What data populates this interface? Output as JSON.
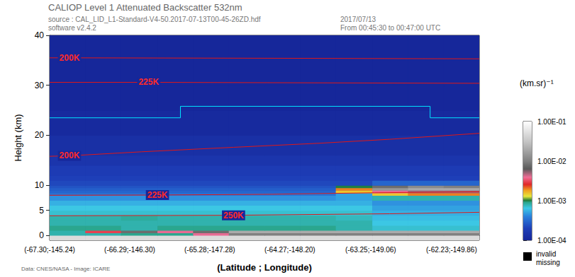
{
  "chart_data": {
    "type": "heatmap",
    "title": "CALIOP Level 1 Attenuated Backscatter 532nm",
    "subtitle": [
      "source : CAL_LID_L1-Standard-V4-50.2017-07-13T00-45-26ZD.hdf",
      "software v2.4.2"
    ],
    "annotations": [
      "2017/07/13",
      "From 00:45:30 to 00:47:00 UTC",
      "Data: CNES/NASA - Image: ICARE"
    ],
    "x_label": "(Latitude ; Longitude)",
    "y_label": "Height (km)",
    "xlim": [
      -67.3,
      -61.88
    ],
    "xticks": [
      {
        "value": -67.3,
        "label": "(-67.30;-145.24)"
      },
      {
        "value": -66.29,
        "label": "(-66.29;-146.30)"
      },
      {
        "value": -65.28,
        "label": "(-65.28;-147.28)"
      },
      {
        "value": -64.27,
        "label": "(-64.27;-148.20)"
      },
      {
        "value": -63.25,
        "label": "(-63.25;-149.06)"
      },
      {
        "value": -62.23,
        "label": "(-62.23;-149.86)"
      }
    ],
    "ylim": [
      -1,
      40
    ],
    "yticks": [
      0,
      5,
      10,
      20,
      30,
      40
    ],
    "grid": false,
    "x_edges": [
      -67.3,
      -66.85,
      -66.4,
      -65.94,
      -65.49,
      -65.04,
      -64.59,
      -64.14,
      -63.69,
      -63.23,
      -62.78,
      -62.33,
      -61.88
    ],
    "y_edges": [
      -1,
      0,
      0.5,
      1,
      2,
      3,
      4,
      5,
      6,
      7,
      8,
      8.5,
      9,
      9.5,
      10,
      11,
      12,
      14,
      16,
      20,
      25,
      30,
      35,
      40
    ],
    "cells": [
      [
        0.05,
        0.05,
        0.05,
        0.05,
        0.05,
        0.05,
        0.05,
        0.05,
        0.05,
        0.05,
        0.05,
        0.05
      ],
      [
        0.0008,
        0.0008,
        0.0009,
        0.0009,
        0.004,
        0.01,
        0.01,
        0.01,
        0.01,
        0.01,
        0.01,
        0.01
      ],
      [
        0.0008,
        0.003,
        0.008,
        0.004,
        0.008,
        0.02,
        0.02,
        0.02,
        0.02,
        0.02,
        0.02,
        0.02
      ],
      [
        0.0009,
        0.0009,
        0.0008,
        0.0009,
        0.0009,
        0.0009,
        0.0009,
        0.0009,
        0.0008,
        0.0007,
        0.0007,
        0.0007
      ],
      [
        0.0008,
        0.0008,
        0.0008,
        0.0008,
        0.0008,
        0.0008,
        0.0008,
        0.0008,
        0.0008,
        0.00065,
        0.00065,
        0.00065
      ],
      [
        0.0008,
        0.0008,
        0.00085,
        0.0008,
        0.0008,
        0.0008,
        0.0008,
        0.0008,
        0.00075,
        0.0006,
        0.0006,
        0.0006
      ],
      [
        0.0007,
        0.0007,
        0.0007,
        0.0007,
        0.0007,
        0.0007,
        0.0007,
        0.0007,
        0.0007,
        0.00055,
        0.00055,
        0.00055
      ],
      [
        0.00065,
        0.00065,
        0.00065,
        0.00065,
        0.00065,
        0.00065,
        0.00065,
        0.00065,
        0.00065,
        0.0005,
        0.0005,
        0.0005
      ],
      [
        0.00055,
        0.00055,
        0.00055,
        0.00055,
        0.00055,
        0.00055,
        0.00055,
        0.00055,
        0.00055,
        0.00045,
        0.00045,
        0.00045
      ],
      [
        0.00045,
        0.00045,
        0.00045,
        0.00045,
        0.00045,
        0.00045,
        0.00045,
        0.00045,
        0.0005,
        0.0008,
        0.0008,
        0.0008
      ],
      [
        0.00035,
        0.00035,
        0.00035,
        0.00035,
        0.00035,
        0.00035,
        0.00035,
        0.00035,
        0.0005,
        0.0015,
        0.002,
        0.002
      ],
      [
        0.0003,
        0.0003,
        0.0003,
        0.0003,
        0.0003,
        0.0003,
        0.0003,
        0.0003,
        0.0015,
        0.004,
        0.005,
        0.005
      ],
      [
        0.00028,
        0.00028,
        0.00028,
        0.00028,
        0.00028,
        0.00028,
        0.00028,
        0.00028,
        0.002,
        0.015,
        0.02,
        0.02
      ],
      [
        0.00025,
        0.00025,
        0.00025,
        0.00025,
        0.00025,
        0.00025,
        0.00025,
        0.00025,
        0.001,
        0.008,
        0.012,
        0.01
      ],
      [
        0.00022,
        0.00022,
        0.00022,
        0.00022,
        0.00022,
        0.00022,
        0.00022,
        0.00022,
        0.00022,
        0.0003,
        0.0003,
        0.0003
      ],
      [
        0.0002,
        0.0002,
        0.0002,
        0.0002,
        0.0002,
        0.0002,
        0.0002,
        0.0002,
        0.0002,
        0.0002,
        0.0002,
        0.0002
      ],
      [
        0.00018,
        0.00018,
        0.00018,
        0.00018,
        0.00018,
        0.00018,
        0.00018,
        0.00018,
        0.00018,
        0.00018,
        0.00018,
        0.00018
      ],
      [
        0.00015,
        0.00015,
        0.00015,
        0.00015,
        0.00015,
        0.00015,
        0.00015,
        0.00015,
        0.00015,
        0.00015,
        0.00015,
        0.00015
      ],
      [
        0.00013,
        0.00013,
        0.00013,
        0.00013,
        0.00013,
        0.00013,
        0.00013,
        0.00013,
        0.00013,
        0.00013,
        0.00013,
        0.00013
      ],
      [
        0.00011,
        0.00011,
        0.00011,
        0.00011,
        0.00011,
        0.00011,
        0.00011,
        0.00011,
        0.00011,
        0.00011,
        0.00011,
        0.00011
      ],
      [
        0.0001,
        0.0001,
        0.0001,
        0.0001,
        0.0001,
        0.0001,
        0.0001,
        0.0001,
        0.0001,
        0.0001,
        0.0001,
        0.0001
      ],
      [
        0.0001,
        0.0001,
        0.0001,
        0.0001,
        0.0001,
        0.0001,
        0.0001,
        0.0001,
        0.0001,
        0.0001,
        0.0001,
        0.0001
      ],
      [
        0.0001,
        0.0001,
        0.0001,
        0.0001,
        0.0001,
        0.0001,
        0.0001,
        0.0001,
        0.0001,
        0.0001,
        0.0001,
        0.0001
      ]
    ],
    "colorbar": {
      "label": "(km.sr)⁻¹",
      "range": [
        0.0001,
        0.1
      ],
      "log": true,
      "ticks": [
        {
          "value": 0.1,
          "label": "1.00E-01"
        },
        {
          "value": 0.01,
          "label": "1.00E-02"
        },
        {
          "value": 0.001,
          "label": "1.00E-03"
        },
        {
          "value": 0.0001,
          "label": "1.00E-04"
        }
      ],
      "missing_label": [
        "invalid",
        "missing"
      ]
    },
    "series": [
      {
        "name": "200K",
        "type": "line",
        "color": "#e01818",
        "x": [
          -67.3,
          -67.05,
          -64.0,
          -61.88
        ],
        "values": [
          35.5,
          35.5,
          35.4,
          35.3
        ]
      },
      {
        "name": "225K",
        "type": "line",
        "color": "#e01818",
        "x": [
          -67.3,
          -66.05,
          -64.0,
          -61.88
        ],
        "values": [
          30.6,
          30.6,
          30.5,
          30.4
        ]
      },
      {
        "type": "line",
        "color": "#00e5ff",
        "x": [
          -67.3,
          -65.65,
          -65.65,
          -62.5,
          -62.5,
          -61.88
        ],
        "values": [
          23.5,
          23.5,
          25.8,
          25.8,
          23.5,
          23.5
        ]
      },
      {
        "name": "200K",
        "type": "line",
        "color": "#e01818",
        "x": [
          -67.3,
          -67.05,
          -66.14,
          -64.98,
          -63.91,
          -63.01,
          -61.88
        ],
        "values": [
          15.8,
          15.9,
          16.7,
          17.6,
          18.4,
          19.2,
          20.4
        ]
      },
      {
        "name": "225K",
        "type": "line",
        "color": "#e01818",
        "x": [
          -67.3,
          -65.94,
          -64.5,
          -63.2,
          -61.88
        ],
        "values": [
          8.0,
          8.05,
          8.2,
          8.5,
          8.7
        ]
      },
      {
        "name": "250K",
        "type": "line",
        "color": "#e01818",
        "x": [
          -67.3,
          -64.98,
          -64.35,
          -63.01,
          -61.88
        ],
        "values": [
          3.9,
          4.0,
          4.1,
          4.3,
          4.6
        ]
      }
    ]
  }
}
